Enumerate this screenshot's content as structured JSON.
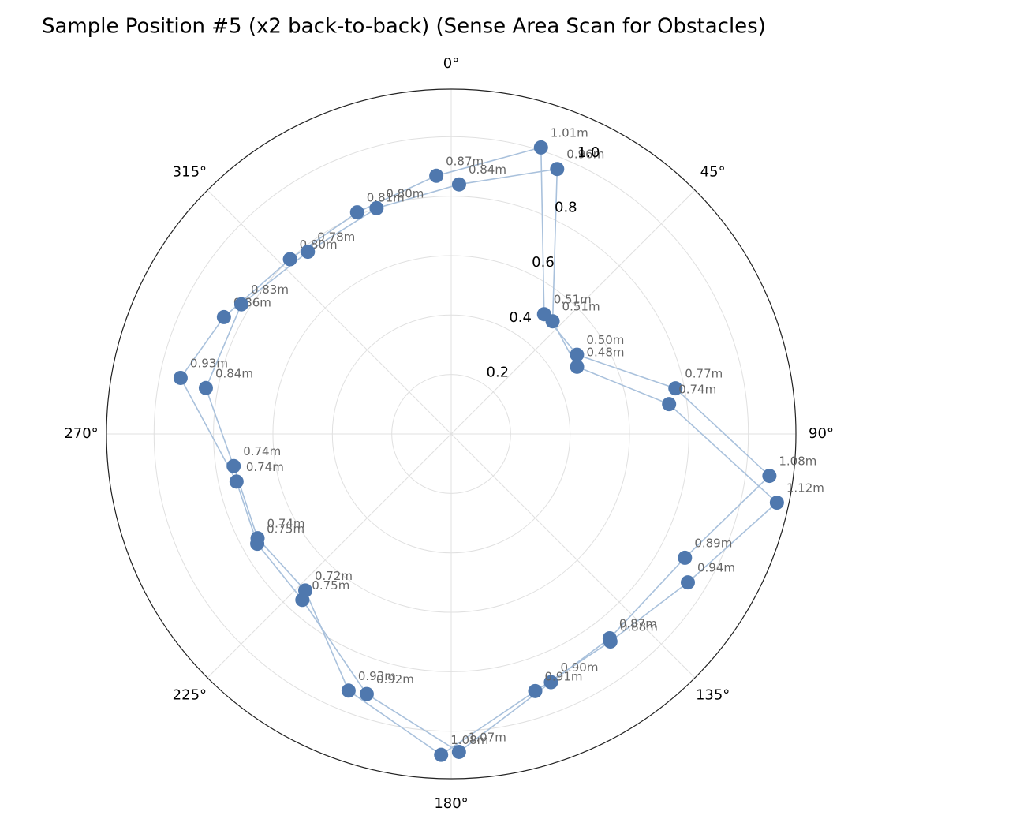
{
  "chart_data": {
    "type": "polar",
    "title": "Sample Position #5 (x2 back-to-back) (Sense Area Scan for Obstacles)",
    "theta_zero_location": "N",
    "theta_direction": -1,
    "ylim": [
      0,
      1.16
    ],
    "yticks": [
      0.2,
      0.4,
      0.6,
      0.8,
      {
        "value": 1.0,
        "label": "1.0"
      }
    ],
    "thetaticks": [
      {
        "value": 0,
        "label": "0°"
      },
      {
        "value": 45,
        "label": "45°"
      },
      {
        "value": 90,
        "label": "90°"
      },
      {
        "value": 135,
        "label": "135°"
      },
      {
        "value": 180,
        "label": "180°"
      },
      {
        "value": 225,
        "label": "225°"
      },
      {
        "value": 270,
        "label": "270°"
      },
      {
        "value": 315,
        "label": "315°"
      }
    ],
    "grid": true,
    "series": [
      {
        "color": "#4f78ae",
        "line_color": "#a9c1dc",
        "theta": [
          17.4,
          37.8,
          57.8,
          78.5,
          97.5,
          117.9,
          142.2,
          158.1,
          178.6,
          198,
          221.9,
          240.5,
          257.5,
          281.7,
          297.2,
          317.3,
          337,
          356.7
        ],
        "values": [
          1.01,
          0.51,
          0.5,
          0.77,
          1.08,
          0.89,
          0.87,
          0.9,
          1.07,
          0.92,
          0.75,
          0.75,
          0.74,
          0.93,
          0.86,
          0.8,
          0.81,
          0.87
        ],
        "value_labels": [
          "1.01m",
          "0.51m",
          "0.50m",
          "0.77m",
          "1.08m",
          "0.89m",
          "0.87m",
          "0.90m",
          "1.07m",
          "0.92m",
          "0.75m",
          "0.75m",
          "0.74m",
          "0.93m",
          "0.86m",
          "0.80m",
          "0.81m",
          "0.87m"
        ]
      },
      {
        "color": "#4f78ae",
        "line_color": "#a9c1dc",
        "theta": [
          1.8,
          21.8,
          42,
          61.9,
          82.2,
          101.9,
          122.1,
          142.5,
          161.9,
          181.8,
          201.8,
          223,
          241.7,
          261.6,
          280.6,
          301.7,
          321.8,
          341.7
        ],
        "values": [
          0.84,
          0.96,
          0.51,
          0.48,
          0.74,
          1.12,
          0.94,
          0.88,
          0.91,
          1.08,
          0.93,
          0.72,
          0.74,
          0.74,
          0.84,
          0.83,
          0.78,
          0.8
        ],
        "value_labels": [
          "0.84m",
          "0.96m",
          "0.51m",
          "0.48m",
          "0.74m",
          "1.12m",
          "0.94m",
          "0.88m",
          "0.91m",
          "1.08m",
          "0.93m",
          "0.72m",
          "0.74m",
          "0.74m",
          "0.84m",
          "0.83m",
          "0.78m",
          "0.80m"
        ]
      }
    ]
  }
}
